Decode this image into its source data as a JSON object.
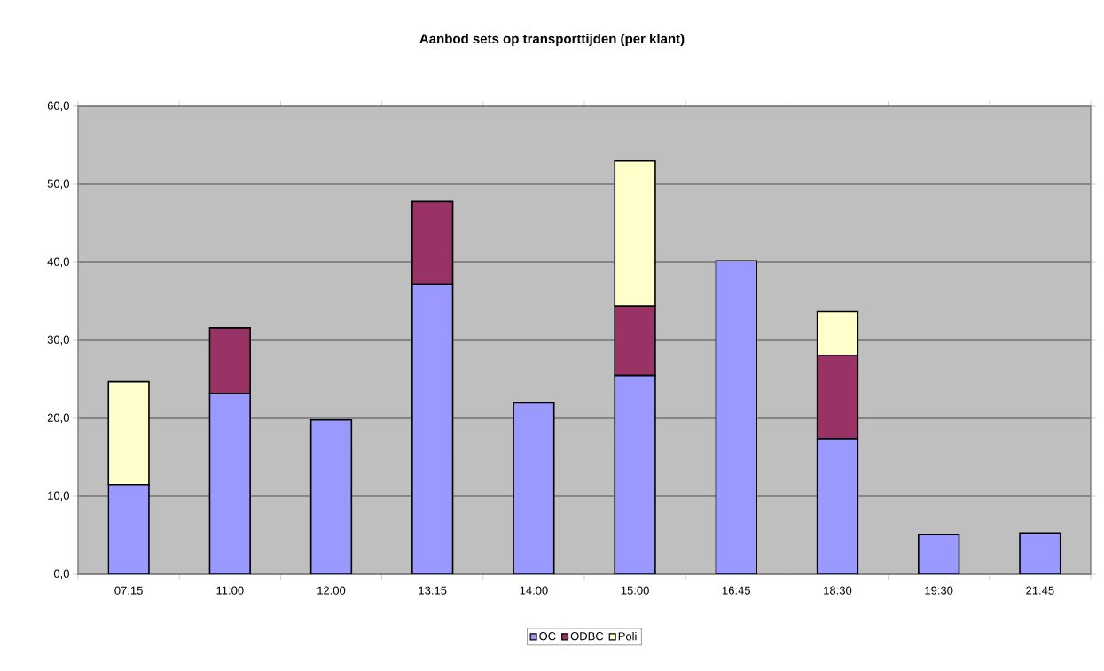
{
  "chart_data": {
    "type": "bar",
    "stacked": true,
    "title": "Aanbod sets op transporttijden (per klant)",
    "categories": [
      "07:15",
      "11:00",
      "12:00",
      "13:15",
      "14:00",
      "15:00",
      "16:45",
      "18:30",
      "19:30",
      "21:45"
    ],
    "series": [
      {
        "name": "OC",
        "color": "#9999ff",
        "values": [
          11.5,
          23.2,
          19.8,
          37.2,
          22.0,
          25.5,
          40.2,
          17.4,
          5.1,
          5.3
        ]
      },
      {
        "name": "ODBC",
        "color": "#993366",
        "values": [
          null,
          8.4,
          null,
          10.6,
          null,
          8.9,
          null,
          10.7,
          null,
          null
        ]
      },
      {
        "name": "Poli",
        "color": "#ffffcc",
        "values": [
          13.2,
          null,
          null,
          null,
          null,
          18.6,
          null,
          5.6,
          null,
          null
        ]
      }
    ],
    "ylim": [
      0,
      60
    ],
    "yticks": [
      {
        "value": 0,
        "label": "0,0"
      },
      {
        "value": 10,
        "label": "10,0"
      },
      {
        "value": 20,
        "label": "20,0"
      },
      {
        "value": 30,
        "label": "30,0"
      },
      {
        "value": 40,
        "label": "40,0"
      },
      {
        "value": 50,
        "label": "50,0"
      },
      {
        "value": 60,
        "label": "60,0"
      }
    ],
    "grid": "y",
    "legend": "bottom"
  }
}
